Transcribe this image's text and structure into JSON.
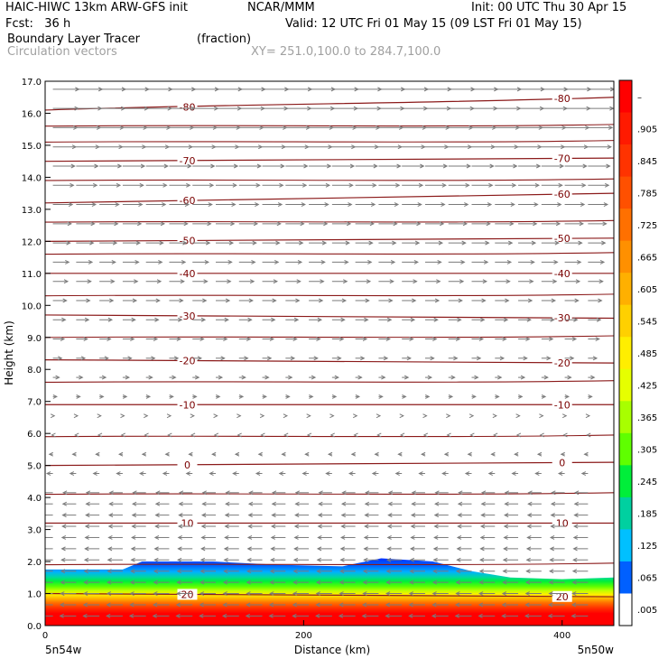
{
  "header": {
    "model": "HAIC-HIWC 13km ARW-GFS init",
    "org": "NCAR/MMM",
    "init": "Init: 00 UTC Thu 30 Apr 15",
    "fcst": "Fcst:   36 h",
    "valid": "Valid: 12 UTC Fri 01 May 15 (09 LST Fri 01 May 15)",
    "field": "Boundary Layer Tracer",
    "units": "(fraction)",
    "field2": "Circulation vectors",
    "xy": "XY= 251.0,100.0 to 284.7,100.0"
  },
  "chart_data": {
    "type": "heatmap",
    "title": "Boundary Layer Tracer",
    "ylabel": "Height (km)",
    "xlabel": "Distance (km)",
    "xlim": [
      0,
      440
    ],
    "ylim": [
      0,
      17
    ],
    "y_ticks": [
      "0.0",
      "1.0",
      "2.0",
      "3.0",
      "4.0",
      "5.0",
      "6.0",
      "7.0",
      "8.0",
      "9.0",
      "10.0",
      "11.0",
      "12.0",
      "13.0",
      "14.0",
      "15.0",
      "16.0",
      "17.0"
    ],
    "x_ticks": [
      0,
      200,
      400
    ],
    "x_endpoints": [
      "5n54w",
      "5n50w"
    ],
    "colorbar_labels": [
      "–",
      ".905",
      ".845",
      ".785",
      ".725",
      ".665",
      ".605",
      ".545",
      ".485",
      ".425",
      ".365",
      ".305",
      ".245",
      ".185",
      ".125",
      ".065",
      ".005"
    ],
    "colorbar_colors": [
      "#ff0000",
      "#ff1a00",
      "#ff3300",
      "#ff5000",
      "#ff7000",
      "#ff9000",
      "#ffb000",
      "#ffd000",
      "#ffee00",
      "#e6ff00",
      "#a8ff00",
      "#5fff00",
      "#00ee3a",
      "#00d0a0",
      "#00c0ff",
      "#0060ff",
      "#ffffff"
    ],
    "temperature_contours": [
      {
        "label": "-80",
        "z_left": 16.1,
        "z_right": 16.5
      },
      {
        "label": "-70",
        "z_left": 14.5,
        "z_right": 14.6
      },
      {
        "label": "-60",
        "z_left": 13.2,
        "z_right": 13.5
      },
      {
        "label": "-50",
        "z_left": 12.0,
        "z_right": 12.1
      },
      {
        "label": "-40",
        "z_left": 11.0,
        "z_right": 11.0
      },
      {
        "label": "-30",
        "z_left": 9.7,
        "z_right": 9.6
      },
      {
        "label": "-20",
        "z_left": 8.3,
        "z_right": 8.2
      },
      {
        "label": "-10",
        "z_left": 6.9,
        "z_right": 6.9
      },
      {
        "label": "0",
        "z_left": 5.0,
        "z_right": 5.1
      },
      {
        "label": "10",
        "z_left": 3.2,
        "z_right": 3.2
      },
      {
        "label": "20",
        "z_left": 1.0,
        "z_right": 0.9
      }
    ],
    "unlabeled_contour_heights": [
      15.6,
      15.1,
      13.9,
      12.6,
      11.6,
      10.3,
      9.0,
      7.6,
      5.9,
      4.1,
      1.9
    ],
    "boundary_layer_top_km": [
      [
        0,
        1.75
      ],
      [
        60,
        1.75
      ],
      [
        75,
        2.0
      ],
      [
        130,
        2.0
      ],
      [
        180,
        1.9
      ],
      [
        230,
        1.85
      ],
      [
        260,
        2.1
      ],
      [
        300,
        2.0
      ],
      [
        330,
        1.7
      ],
      [
        360,
        1.5
      ],
      [
        400,
        1.45
      ],
      [
        440,
        1.5
      ]
    ],
    "vectors": "westward near surface, eastward aloft"
  }
}
